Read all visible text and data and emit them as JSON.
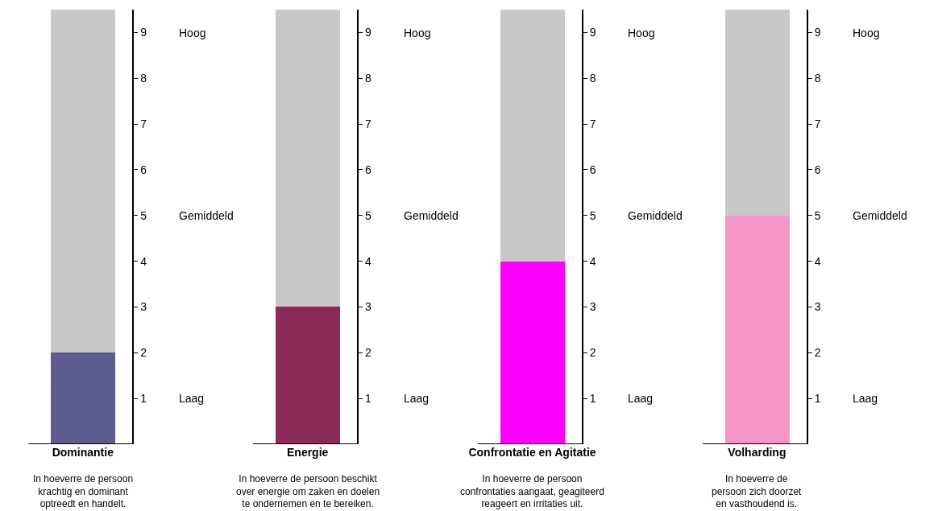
{
  "chart_data": [
    {
      "type": "bar",
      "stacked": true,
      "categories": [
        "Dominantie"
      ],
      "series": [
        {
          "color": "#5c5c8e",
          "values": [
            2
          ]
        },
        {
          "color": "#c8c8c8",
          "values": [
            7.5
          ]
        }
      ],
      "ylim": [
        0,
        9.5
      ],
      "yticks": [
        1,
        2,
        3,
        4,
        5,
        6,
        7,
        8,
        9
      ],
      "annotations": [
        "Hoog",
        "Gemiddeld",
        "Laag",
        "In hoeverre de persoon krachtig en dominant optreedt en handelt."
      ]
    },
    {
      "type": "bar",
      "stacked": true,
      "categories": [
        "Energie"
      ],
      "series": [
        {
          "color": "#8c2a57",
          "values": [
            3
          ]
        },
        {
          "color": "#c8c8c8",
          "values": [
            6.5
          ]
        }
      ],
      "ylim": [
        0,
        9.5
      ],
      "yticks": [
        1,
        2,
        3,
        4,
        5,
        6,
        7,
        8,
        9
      ],
      "annotations": [
        "Hoog",
        "Gemiddeld",
        "Laag",
        "In hoeverre de persoon beschikt over energie om zaken en doelen te ondernemen en te bereiken."
      ]
    },
    {
      "type": "bar",
      "stacked": true,
      "categories": [
        "Confrontatie en Agitatie"
      ],
      "series": [
        {
          "color": "#ff00ff",
          "values": [
            4
          ]
        },
        {
          "color": "#c8c8c8",
          "values": [
            5.5
          ]
        }
      ],
      "ylim": [
        0,
        9.5
      ],
      "yticks": [
        1,
        2,
        3,
        4,
        5,
        6,
        7,
        8,
        9
      ],
      "annotations": [
        "Hoog",
        "Gemiddeld",
        "Laag",
        "In hoeverre de persoon confrontaties aangaat, geagiteerd reageert en irritaties uit."
      ]
    },
    {
      "type": "bar",
      "stacked": true,
      "categories": [
        "Volharding"
      ],
      "series": [
        {
          "color": "#f595c5",
          "values": [
            5
          ]
        },
        {
          "color": "#c8c8c8",
          "values": [
            4.5
          ]
        }
      ],
      "ylim": [
        0,
        9.5
      ],
      "yticks": [
        1,
        2,
        3,
        4,
        5,
        6,
        7,
        8,
        9
      ],
      "annotations": [
        "Hoog",
        "Gemiddeld",
        "Laag",
        "In hoeverre de persoon zich doorzet en vasthoudend is."
      ]
    }
  ]
}
